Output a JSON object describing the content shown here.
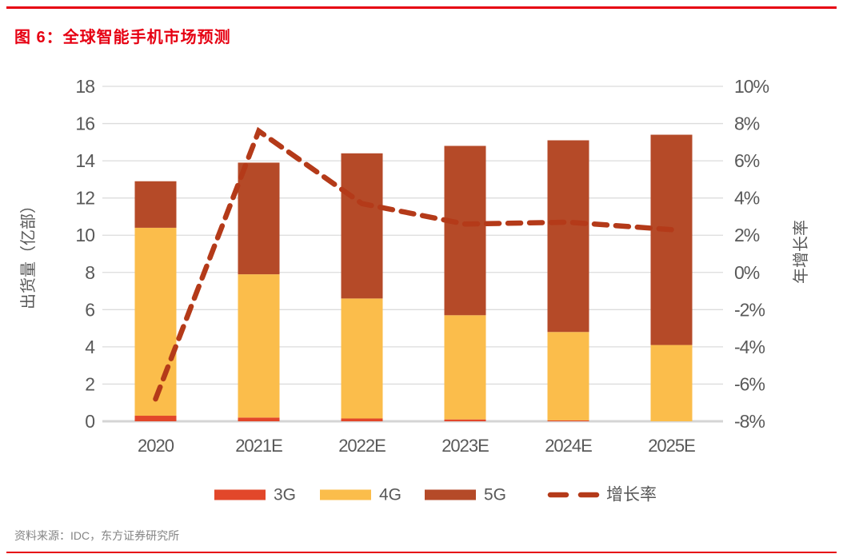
{
  "header": {
    "title": "图 6：全球智能手机市场预测"
  },
  "footer": {
    "source": "资料来源：IDC，东方证券研究所"
  },
  "colors": {
    "accent_red": "#E60012",
    "axis_text": "#595959",
    "grid_line": "#DCDCDC",
    "axis_line": "#D5D5D5",
    "footer_text": "#848484",
    "bar_3g": "#E2472A",
    "bar_4g": "#FBBD4B",
    "bar_5g": "#B54A28",
    "growth_line": "#B43A19"
  },
  "chart_data": {
    "type": "bar",
    "subtype": "stacked-bar-with-line",
    "title": "图 6：全球智能手机市场预测",
    "categories": [
      "2020",
      "2021E",
      "2022E",
      "2023E",
      "2024E",
      "2025E"
    ],
    "series": [
      {
        "name": "3G",
        "type": "bar",
        "color": "#E2472A",
        "values": [
          0.3,
          0.2,
          0.15,
          0.1,
          0.05,
          0
        ]
      },
      {
        "name": "4G",
        "type": "bar",
        "color": "#FBBD4B",
        "values": [
          10.1,
          7.7,
          6.45,
          5.6,
          4.75,
          4.1
        ]
      },
      {
        "name": "5G",
        "type": "bar",
        "color": "#B54A28",
        "values": [
          2.5,
          6.0,
          7.8,
          9.1,
          10.3,
          11.3
        ]
      }
    ],
    "bar_totals": [
      12.9,
      13.9,
      14.4,
      14.8,
      15.1,
      15.4
    ],
    "line_series": {
      "name": "增长率",
      "type": "dashed-line",
      "color": "#B43A19",
      "values_pct": [
        -6.8,
        7.6,
        3.7,
        2.6,
        2.7,
        2.3
      ]
    },
    "y_left": {
      "label": "出货量（亿部）",
      "min": 0,
      "max": 18,
      "step": 2,
      "ticks": [
        "18",
        "16",
        "14",
        "12",
        "10",
        "8",
        "6",
        "4",
        "2",
        "0"
      ]
    },
    "y_right": {
      "label": "年增长率",
      "min": -8,
      "max": 10,
      "step": 2,
      "ticks": [
        "10%",
        "8%",
        "6%",
        "4%",
        "2%",
        "0%",
        "-2%",
        "-4%",
        "-6%",
        "-8%"
      ]
    },
    "grid": true,
    "legend_position": "bottom",
    "legend": [
      "3G",
      "4G",
      "5G",
      "增长率"
    ]
  }
}
